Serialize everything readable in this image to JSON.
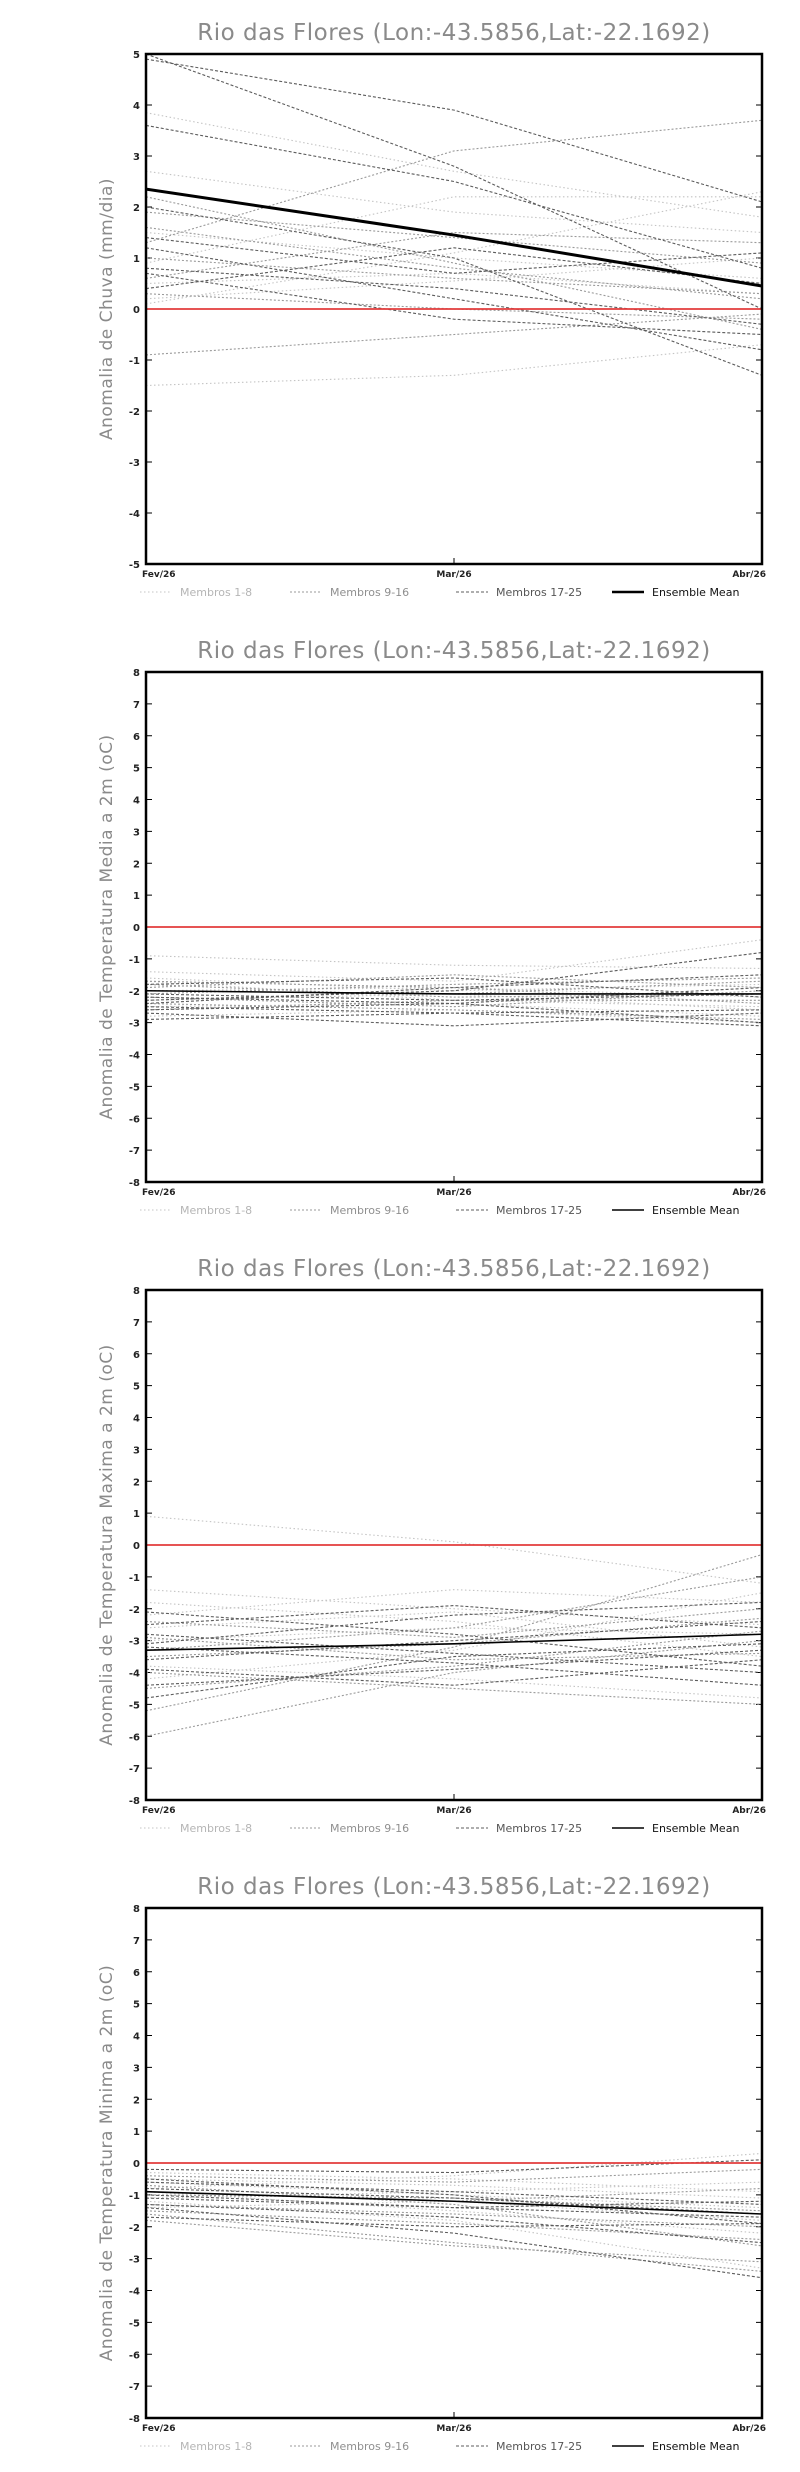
{
  "chart_data": [
    {
      "type": "line",
      "title": "Rio das Flores (Lon:-43.5856,Lat:-22.1692)",
      "ylabel": "Anomalia de Chuva (mm/dia)",
      "x": [
        "Fev/26",
        "Mar/26",
        "Abr/26"
      ],
      "ylim": [
        -5,
        5
      ],
      "yticks": [
        -5,
        -4,
        -3,
        -2,
        -1,
        0,
        1,
        2,
        3,
        4,
        5
      ],
      "zero_line_color": "#e23b3b",
      "members": [
        [
          0.2,
          0.55,
          1.0
        ],
        [
          3.85,
          2.7,
          1.8
        ],
        [
          -1.5,
          -1.3,
          -0.7
        ],
        [
          0.1,
          1.1,
          2.3
        ],
        [
          1.5,
          1.0,
          0.6
        ],
        [
          0.5,
          0.7,
          0.3
        ],
        [
          2.7,
          1.9,
          1.5
        ],
        [
          0.9,
          2.2,
          2.2
        ],
        [
          1.3,
          3.1,
          3.7
        ],
        [
          -0.9,
          -0.5,
          -0.1
        ],
        [
          1.0,
          0.6,
          0.3
        ],
        [
          2.2,
          0.9,
          -0.4
        ],
        [
          0.6,
          1.5,
          1.3
        ],
        [
          1.9,
          1.4,
          0.9
        ],
        [
          0.3,
          0.0,
          -0.2
        ],
        [
          1.6,
          0.8,
          0.2
        ],
        [
          3.6,
          2.5,
          0.8
        ],
        [
          4.9,
          3.9,
          2.1
        ],
        [
          1.2,
          0.2,
          -0.8
        ],
        [
          0.8,
          0.4,
          -0.3
        ],
        [
          1.4,
          0.7,
          1.1
        ],
        [
          2.0,
          1.0,
          -1.3
        ],
        [
          5.0,
          2.8,
          0.0
        ],
        [
          0.4,
          1.2,
          0.5
        ],
        [
          0.7,
          -0.2,
          -0.5
        ]
      ],
      "ensemble_mean": [
        2.35,
        1.45,
        0.45
      ],
      "ensemble_mean_bold": true
    },
    {
      "type": "line",
      "title": "Rio das Flores (Lon:-43.5856,Lat:-22.1692)",
      "ylabel": "Anomalia de Temperatura Media a 2m (oC)",
      "x": [
        "Fev/26",
        "Mar/26",
        "Abr/26"
      ],
      "ylim": [
        -8,
        8
      ],
      "yticks": [
        -8,
        -7,
        -6,
        -5,
        -4,
        -3,
        -2,
        -1,
        0,
        1,
        2,
        3,
        4,
        5,
        6,
        7,
        8
      ],
      "zero_line_color": "#e23b3b",
      "members": [
        [
          -1.7,
          -2.3,
          -2.5
        ],
        [
          -0.9,
          -1.2,
          -1.3
        ],
        [
          -2.0,
          -1.9,
          -2.2
        ],
        [
          -1.6,
          -2.0,
          -1.8
        ],
        [
          -2.3,
          -2.1,
          -2.6
        ],
        [
          -1.4,
          -1.7,
          -0.4
        ],
        [
          -2.5,
          -2.4,
          -2.8
        ],
        [
          -2.8,
          -2.6,
          -3.0
        ],
        [
          -2.1,
          -1.8,
          -1.6
        ],
        [
          -1.8,
          -2.2,
          -2.1
        ],
        [
          -2.4,
          -2.6,
          -2.9
        ],
        [
          -1.9,
          -1.5,
          -1.9
        ],
        [
          -2.6,
          -2.3,
          -2.3
        ],
        [
          -2.2,
          -2.5,
          -2.0
        ],
        [
          -2.0,
          -2.1,
          -1.7
        ],
        [
          -1.7,
          -1.9,
          -2.4
        ],
        [
          -2.9,
          -2.7,
          -3.1
        ],
        [
          -2.3,
          -2.0,
          -0.8
        ],
        [
          -2.5,
          -2.7,
          -2.6
        ],
        [
          -1.8,
          -1.6,
          -2.2
        ],
        [
          -2.2,
          -2.4,
          -1.9
        ],
        [
          -2.7,
          -3.1,
          -2.7
        ],
        [
          -2.1,
          -2.3,
          -2.1
        ],
        [
          -2.4,
          -1.9,
          -1.5
        ],
        [
          -2.6,
          -2.4,
          -3.0
        ]
      ],
      "ensemble_mean": [
        -2.0,
        -2.1,
        -2.1
      ],
      "ensemble_mean_bold": false
    },
    {
      "type": "line",
      "title": "Rio das Flores (Lon:-43.5856,Lat:-22.1692)",
      "ylabel": "Anomalia de Temperatura Maxima a 2m (oC)",
      "x": [
        "Fev/26",
        "Mar/26",
        "Abr/26"
      ],
      "ylim": [
        -8,
        8
      ],
      "yticks": [
        -8,
        -7,
        -6,
        -5,
        -4,
        -3,
        -2,
        -1,
        0,
        1,
        2,
        3,
        4,
        5,
        6,
        7,
        8
      ],
      "zero_line_color": "#e23b3b",
      "members": [
        [
          0.9,
          0.1,
          -1.2
        ],
        [
          -1.4,
          -2.0,
          -2.5
        ],
        [
          -2.6,
          -2.1,
          -3.2
        ],
        [
          -3.0,
          -2.6,
          -2.8
        ],
        [
          -1.8,
          -2.4,
          -3.5
        ],
        [
          -4.2,
          -3.3,
          -1.5
        ],
        [
          -2.2,
          -1.4,
          -1.8
        ],
        [
          -3.8,
          -4.2,
          -4.8
        ],
        [
          -2.9,
          -3.6,
          -3.4
        ],
        [
          -3.5,
          -3.1,
          -2.3
        ],
        [
          -4.5,
          -3.8,
          -2.7
        ],
        [
          -2.4,
          -2.9,
          -2.0
        ],
        [
          -5.2,
          -3.2,
          -0.3
        ],
        [
          -4.0,
          -4.5,
          -5.0
        ],
        [
          -3.3,
          -2.6,
          -1.0
        ],
        [
          -6.0,
          -4.0,
          -3.0
        ],
        [
          -2.1,
          -2.8,
          -3.8
        ],
        [
          -3.6,
          -3.0,
          -2.4
        ],
        [
          -4.8,
          -3.5,
          -3.1
        ],
        [
          -2.8,
          -3.4,
          -4.0
        ],
        [
          -3.1,
          -2.2,
          -1.8
        ],
        [
          -4.4,
          -3.9,
          -3.3
        ],
        [
          -2.5,
          -1.9,
          -2.6
        ],
        [
          -3.9,
          -4.4,
          -3.6
        ],
        [
          -3.2,
          -3.7,
          -4.4
        ]
      ],
      "ensemble_mean": [
        -3.3,
        -3.1,
        -2.8
      ],
      "ensemble_mean_bold": false
    },
    {
      "type": "line",
      "title": "Rio das Flores (Lon:-43.5856,Lat:-22.1692)",
      "ylabel": "Anomalia de Temperatura Minima a 2m (oC)",
      "x": [
        "Fev/26",
        "Mar/26",
        "Abr/26"
      ],
      "ylim": [
        -8,
        8
      ],
      "yticks": [
        -8,
        -7,
        -6,
        -5,
        -4,
        -3,
        -2,
        -1,
        0,
        1,
        2,
        3,
        4,
        5,
        6,
        7,
        8
      ],
      "zero_line_color": "#e23b3b",
      "members": [
        [
          -0.8,
          -0.4,
          0.3
        ],
        [
          -0.3,
          -0.5,
          -0.9
        ],
        [
          -1.1,
          -0.9,
          -0.6
        ],
        [
          -0.6,
          -1.0,
          -1.4
        ],
        [
          -1.4,
          -1.2,
          -1.8
        ],
        [
          -0.9,
          -1.5,
          -2.2
        ],
        [
          -1.2,
          -1.8,
          -3.3
        ],
        [
          -0.5,
          -0.7,
          -1.1
        ],
        [
          -1.6,
          -2.5,
          -3.4
        ],
        [
          -1.0,
          -1.1,
          -1.5
        ],
        [
          -0.7,
          -1.3,
          -2.6
        ],
        [
          -1.3,
          -1.6,
          -2.0
        ],
        [
          -0.4,
          -0.6,
          -0.2
        ],
        [
          -1.5,
          -1.9,
          -2.4
        ],
        [
          -0.9,
          -1.2,
          -0.8
        ],
        [
          -1.8,
          -2.6,
          -3.1
        ],
        [
          -0.6,
          -0.9,
          -1.3
        ],
        [
          -1.1,
          -1.4,
          -1.7
        ],
        [
          -0.8,
          -1.1,
          -1.6
        ],
        [
          -1.3,
          -1.7,
          -2.5
        ],
        [
          -0.2,
          -0.3,
          0.1
        ],
        [
          -1.7,
          -2.0,
          -1.9
        ],
        [
          -1.0,
          -1.4,
          -1.2
        ],
        [
          -0.5,
          -1.0,
          -1.9
        ],
        [
          -1.4,
          -2.2,
          -3.6
        ]
      ],
      "ensemble_mean": [
        -0.9,
        -1.2,
        -1.6
      ],
      "ensemble_mean_bold": false
    }
  ],
  "legend": [
    {
      "label": "Membros 1-8",
      "color": "#c4c4c4",
      "dash": "1.5,2.5",
      "text_color": "#b5b5b5"
    },
    {
      "label": "Membros 9-16",
      "color": "#9a9a9a",
      "dash": "2,2",
      "text_color": "#8f8f8f"
    },
    {
      "label": "Membros 17-25",
      "color": "#5c5c5c",
      "dash": "3,2",
      "text_color": "#555555"
    },
    {
      "label": "Ensemble Mean",
      "color": "#000000",
      "dash": "",
      "text_color": "#111111"
    }
  ]
}
